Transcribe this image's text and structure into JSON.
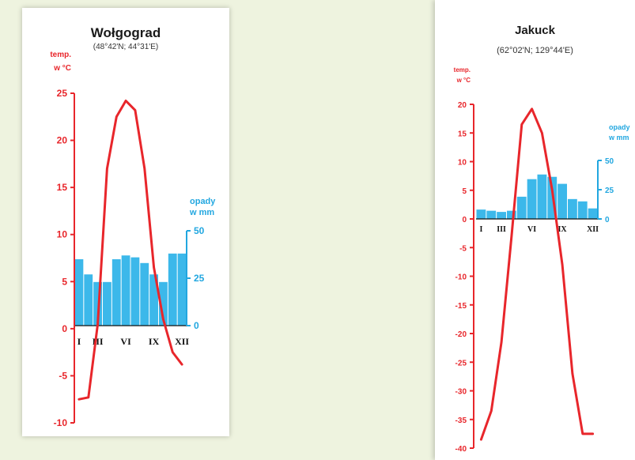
{
  "colors": {
    "temp": "#e8262b",
    "precip": "#3cb8ea",
    "precip_axis": "#22a7e0",
    "background": "#eef3df"
  },
  "chart_data": [
    {
      "type": "climate",
      "title": "Wołgograd",
      "subtitle": "(48°42'N; 44°31'E)",
      "ylabel_temp": [
        "temp.",
        "w °C"
      ],
      "ylabel_precip": [
        "opady",
        "w mm"
      ],
      "temp_ticks": [
        "25",
        "20",
        "15",
        "10",
        "5",
        "0",
        "-5",
        "-10"
      ],
      "temp_range": [
        -10,
        25
      ],
      "precip_ticks": [
        "50",
        "25",
        "0"
      ],
      "precip_range": [
        0,
        50
      ],
      "month_labels": [
        "I",
        "III",
        "VI",
        "IX",
        "XII"
      ],
      "month_label_index": [
        0,
        2,
        5,
        8,
        11
      ],
      "months": [
        1,
        2,
        3,
        4,
        5,
        6,
        7,
        8,
        9,
        10,
        11,
        12
      ],
      "temperature": [
        -7.5,
        -7.3,
        0.5,
        17,
        22.5,
        24.2,
        23.2,
        17,
        6.5,
        1,
        -2.5,
        -3.8
      ],
      "precipitation": [
        35,
        27,
        23,
        23,
        35,
        37,
        36,
        33,
        27,
        23,
        38,
        38
      ]
    },
    {
      "type": "climate",
      "title": "Jakuck",
      "subtitle": "(62°02'N; 129°44'E)",
      "ylabel_temp": [
        "temp.",
        "w °C"
      ],
      "ylabel_precip": [
        "opady",
        "w mm"
      ],
      "temp_ticks": [
        "20",
        "15",
        "10",
        "5",
        "0",
        "-5",
        "-10",
        "-15",
        "-20",
        "-25",
        "-30",
        "-35",
        "-40"
      ],
      "temp_range": [
        -40,
        20
      ],
      "precip_ticks": [
        "50",
        "25",
        "0"
      ],
      "precip_range": [
        0,
        50
      ],
      "month_labels": [
        "I",
        "III",
        "VI",
        "IX",
        "XII"
      ],
      "month_label_index": [
        0,
        2,
        5,
        8,
        11
      ],
      "months": [
        1,
        2,
        3,
        4,
        5,
        6,
        7,
        8,
        9,
        10,
        11,
        12
      ],
      "temperature": [
        -38.5,
        -33.5,
        -21.5,
        -3,
        16.5,
        19.2,
        15,
        5,
        -8,
        -27,
        -37.5,
        -37.5
      ],
      "precipitation": [
        8,
        7,
        6,
        7,
        19,
        34,
        38,
        36,
        30,
        17,
        15,
        9
      ]
    }
  ]
}
